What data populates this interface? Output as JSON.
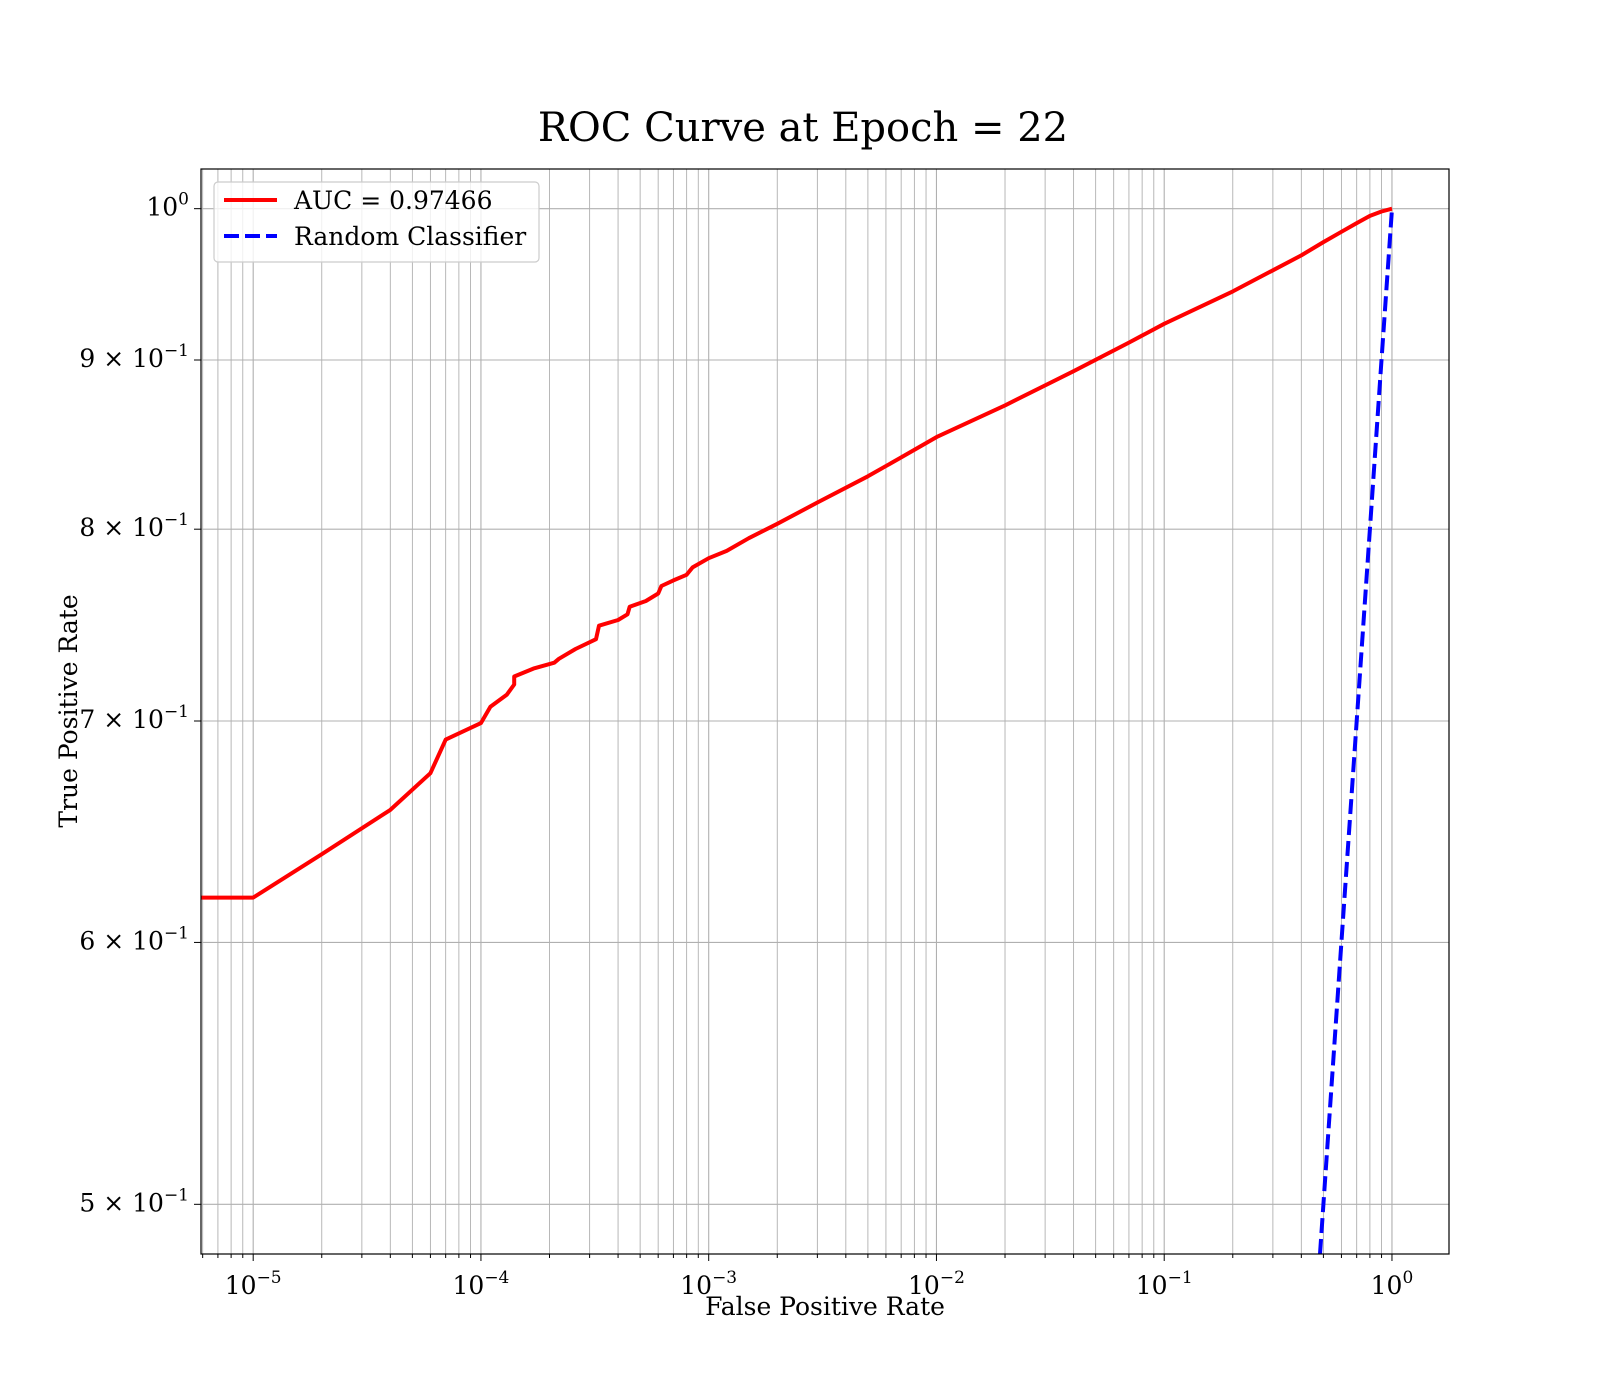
{
  "chart_data": {
    "type": "line",
    "title": "ROC Curve at Epoch = 22",
    "xlabel": "False Positive Rate",
    "ylabel": "True Positive Rate",
    "xscale": "log",
    "yscale": "log",
    "xlim": [
      5.9e-06,
      1.78
    ],
    "ylim": [
      0.483,
      1.028
    ],
    "grid": "major and minor",
    "legend_position": "top-left",
    "x_tick_values": [
      1e-05,
      0.0001,
      0.001,
      0.01,
      0.1,
      1
    ],
    "x_tick_labels": [
      {
        "base": "10",
        "exp": "−5"
      },
      {
        "base": "10",
        "exp": "−4"
      },
      {
        "base": "10",
        "exp": "−3"
      },
      {
        "base": "10",
        "exp": "−2"
      },
      {
        "base": "10",
        "exp": "−1"
      },
      {
        "base": "10",
        "exp": "0"
      }
    ],
    "y_tick_values": [
      0.5,
      0.6,
      0.7,
      0.8,
      0.9,
      1.0
    ],
    "y_tick_labels": [
      {
        "base": "5 × 10",
        "exp": "−1"
      },
      {
        "base": "6 × 10",
        "exp": "−1"
      },
      {
        "base": "7 × 10",
        "exp": "−1"
      },
      {
        "base": "8 × 10",
        "exp": "−1"
      },
      {
        "base": "9 × 10",
        "exp": "−1"
      },
      {
        "base": "10",
        "exp": "0"
      }
    ],
    "series": [
      {
        "name": "AUC = 0.97466",
        "color": "#ff0000",
        "style": "solid",
        "points": [
          [
            5.9e-06,
            0.619
          ],
          [
            1e-05,
            0.619
          ],
          [
            2e-05,
            0.638
          ],
          [
            4e-05,
            0.658
          ],
          [
            6e-05,
            0.675
          ],
          [
            7e-05,
            0.691
          ],
          [
            0.0001,
            0.699
          ],
          [
            0.00011,
            0.707
          ],
          [
            0.00013,
            0.713
          ],
          [
            0.00014,
            0.718
          ],
          [
            0.00014,
            0.722
          ],
          [
            0.00017,
            0.726
          ],
          [
            0.00021,
            0.729
          ],
          [
            0.00022,
            0.731
          ],
          [
            0.00026,
            0.736
          ],
          [
            0.00032,
            0.741
          ],
          [
            0.00033,
            0.748
          ],
          [
            0.0004,
            0.751
          ],
          [
            0.00044,
            0.754
          ],
          [
            0.00045,
            0.758
          ],
          [
            0.00053,
            0.761
          ],
          [
            0.0006,
            0.765
          ],
          [
            0.00062,
            0.769
          ],
          [
            0.0007,
            0.772
          ],
          [
            0.0008,
            0.775
          ],
          [
            0.00085,
            0.779
          ],
          [
            0.001,
            0.784
          ],
          [
            0.0012,
            0.788
          ],
          [
            0.0015,
            0.795
          ],
          [
            0.002,
            0.803
          ],
          [
            0.003,
            0.815
          ],
          [
            0.005,
            0.83
          ],
          [
            0.007,
            0.841
          ],
          [
            0.01,
            0.853
          ],
          [
            0.02,
            0.872
          ],
          [
            0.04,
            0.893
          ],
          [
            0.07,
            0.911
          ],
          [
            0.1,
            0.923
          ],
          [
            0.2,
            0.944
          ],
          [
            0.3,
            0.958
          ],
          [
            0.4,
            0.968
          ],
          [
            0.5,
            0.977
          ],
          [
            0.6,
            0.984
          ],
          [
            0.7,
            0.99
          ],
          [
            0.8,
            0.995
          ],
          [
            0.9,
            0.998
          ],
          [
            1.0,
            1.0
          ]
        ]
      },
      {
        "name": "Random Classifier",
        "color": "#0000ff",
        "style": "dashed",
        "points": [
          [
            0.483,
            0.483
          ],
          [
            0.55,
            0.55
          ],
          [
            0.6,
            0.6
          ],
          [
            0.7,
            0.7
          ],
          [
            0.8,
            0.8
          ],
          [
            0.9,
            0.9
          ],
          [
            1.0,
            1.0
          ]
        ]
      }
    ]
  }
}
